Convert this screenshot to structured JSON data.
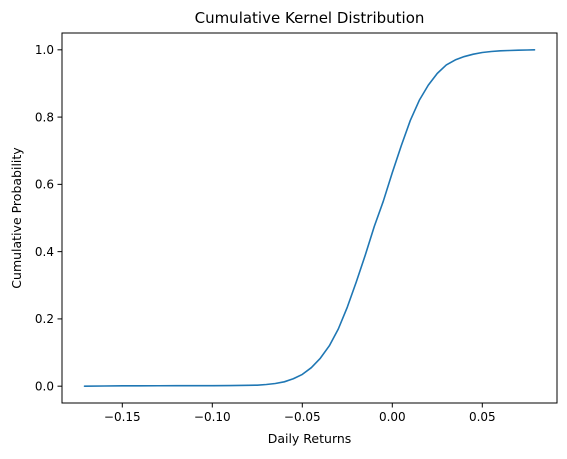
{
  "chart_data": {
    "type": "line",
    "title": "Cumulative Kernel Distribution",
    "xlabel": "Daily Returns",
    "ylabel": "Cumulative Probability",
    "xlim": [
      -0.1835,
      0.0915
    ],
    "ylim": [
      -0.05,
      1.05
    ],
    "x_ticks": [
      -0.15,
      -0.1,
      -0.05,
      0.0,
      0.05
    ],
    "x_tick_labels": [
      "−0.15",
      "−0.10",
      "−0.05",
      "0.00",
      "0.05"
    ],
    "y_ticks": [
      0.0,
      0.2,
      0.4,
      0.6,
      0.8,
      1.0
    ],
    "y_tick_labels": [
      "0.0",
      "0.2",
      "0.4",
      "0.6",
      "0.8",
      "1.0"
    ],
    "grid": false,
    "line_color": "#1f77b4",
    "series": [
      {
        "x": [
          -0.171,
          -0.16,
          -0.15,
          -0.14,
          -0.13,
          -0.12,
          -0.11,
          -0.1,
          -0.09,
          -0.08,
          -0.075,
          -0.07,
          -0.065,
          -0.06,
          -0.055,
          -0.05,
          -0.045,
          -0.04,
          -0.035,
          -0.03,
          -0.025,
          -0.02,
          -0.015,
          -0.01,
          -0.005,
          0.0,
          0.005,
          0.01,
          0.015,
          0.02,
          0.025,
          0.03,
          0.035,
          0.04,
          0.045,
          0.05,
          0.055,
          0.06,
          0.065,
          0.07,
          0.075,
          0.079
        ],
        "y": [
          0.0,
          0.0005,
          0.001,
          0.0012,
          0.0013,
          0.0014,
          0.0015,
          0.0016,
          0.0018,
          0.0025,
          0.003,
          0.005,
          0.008,
          0.013,
          0.022,
          0.035,
          0.055,
          0.083,
          0.12,
          0.17,
          0.235,
          0.31,
          0.39,
          0.475,
          0.55,
          0.635,
          0.715,
          0.79,
          0.85,
          0.895,
          0.93,
          0.955,
          0.97,
          0.98,
          0.987,
          0.992,
          0.995,
          0.997,
          0.998,
          0.999,
          0.9995,
          1.0
        ]
      }
    ]
  }
}
